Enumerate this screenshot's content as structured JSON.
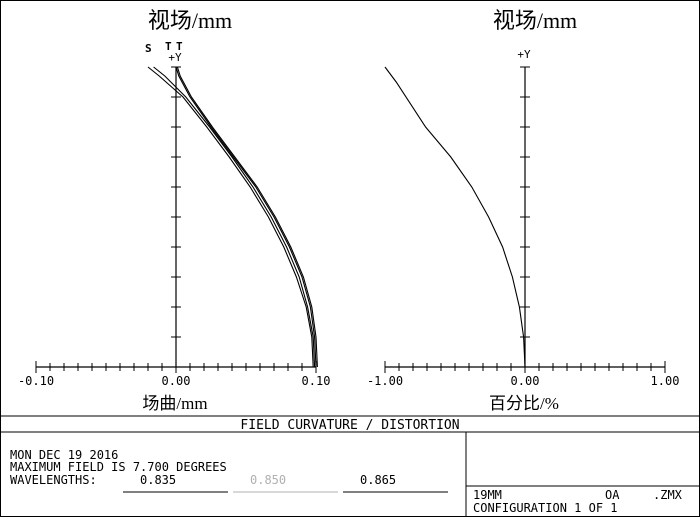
{
  "plot_title": "FIELD CURVATURE / DISTORTION",
  "info": {
    "date": "MON DEC 19 2016",
    "max_field": "MAXIMUM FIELD IS 7.700 DEGREES",
    "wavelengths_label": "WAVELENGTHS:",
    "wavelengths": [
      "0.835",
      "0.850",
      "0.865"
    ],
    "wavelength_colors": [
      "#000000",
      "#b0b0b0",
      "#000000"
    ],
    "lens_id": "19MM",
    "lens_code": "OA",
    "file_ext": ".ZMX",
    "configuration": "CONFIGURATION 1 OF 1"
  },
  "chart_data": [
    {
      "type": "line",
      "title": "视场/mm",
      "xlabel": "场曲/mm",
      "ylabel": "+Y",
      "legend": [
        "S",
        "T",
        "T"
      ],
      "xlim": [
        -0.1,
        0.1
      ],
      "ylim": [
        0,
        1
      ],
      "x_ticks": [
        "-0.10",
        "0.00",
        "0.10"
      ],
      "grid": false,
      "series": [
        {
          "color": "#000000",
          "x": [
            0.098,
            0.097,
            0.093,
            0.086,
            0.077,
            0.066,
            0.053,
            0.038,
            0.022,
            0.005,
            -0.012,
            -0.02
          ],
          "y": [
            0,
            0.1,
            0.2,
            0.3,
            0.4,
            0.5,
            0.6,
            0.7,
            0.8,
            0.9,
            0.97,
            1.0
          ]
        },
        {
          "color": "#000000",
          "x": [
            0.099,
            0.098,
            0.094,
            0.088,
            0.079,
            0.068,
            0.055,
            0.04,
            0.024,
            0.007,
            -0.008,
            -0.016
          ],
          "y": [
            0,
            0.1,
            0.2,
            0.3,
            0.4,
            0.5,
            0.6,
            0.7,
            0.8,
            0.9,
            0.97,
            1.0
          ]
        },
        {
          "color": "#000000",
          "x": [
            0.1,
            0.099,
            0.096,
            0.09,
            0.081,
            0.07,
            0.057,
            0.041,
            0.025,
            0.01,
            0.002,
            0.0
          ],
          "y": [
            0,
            0.1,
            0.2,
            0.3,
            0.4,
            0.5,
            0.6,
            0.7,
            0.8,
            0.9,
            0.97,
            1.0
          ]
        },
        {
          "color": "#000000",
          "x": [
            0.101,
            0.1,
            0.097,
            0.091,
            0.082,
            0.071,
            0.058,
            0.042,
            0.026,
            0.011,
            0.003,
            0.001
          ],
          "y": [
            0,
            0.1,
            0.2,
            0.3,
            0.4,
            0.5,
            0.6,
            0.7,
            0.8,
            0.9,
            0.97,
            1.0
          ]
        }
      ]
    },
    {
      "type": "line",
      "title": "视场/mm",
      "xlabel": "百分比/%",
      "ylabel": "+Y",
      "xlim": [
        -1.0,
        1.0
      ],
      "ylim": [
        0,
        1
      ],
      "x_ticks": [
        "-1.00",
        "0.00",
        "1.00"
      ],
      "grid": false,
      "series": [
        {
          "color": "#000000",
          "x": [
            0.0,
            -0.01,
            -0.04,
            -0.09,
            -0.16,
            -0.26,
            -0.38,
            -0.53,
            -0.71,
            -0.92,
            -1.0
          ],
          "y": [
            0,
            0.1,
            0.2,
            0.3,
            0.4,
            0.5,
            0.6,
            0.7,
            0.8,
            0.95,
            1.0
          ]
        }
      ]
    }
  ]
}
